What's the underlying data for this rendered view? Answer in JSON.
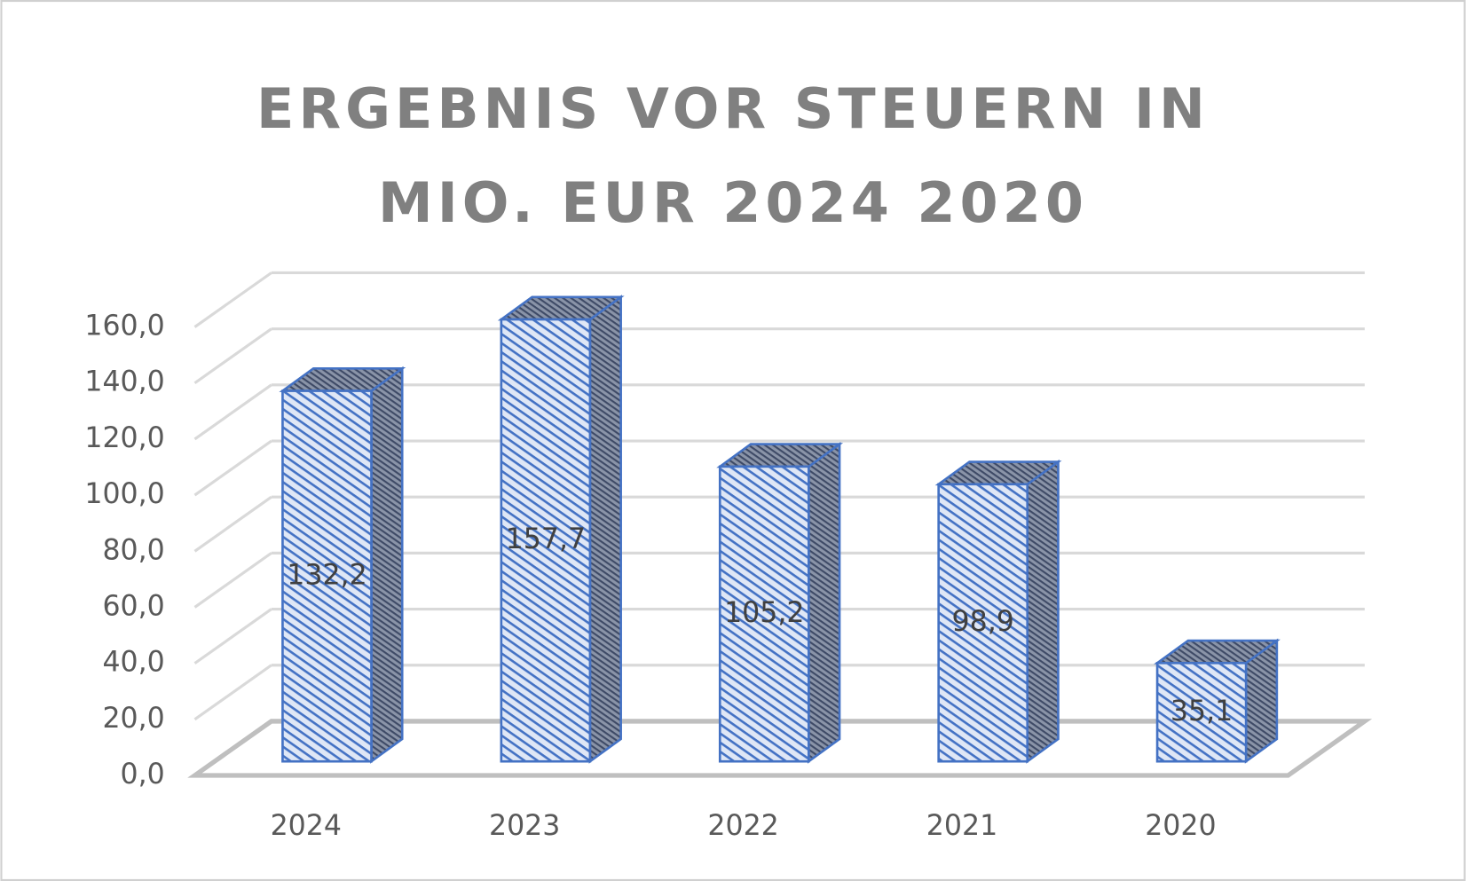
{
  "chart_data": {
    "type": "bar3d",
    "title": "ERGEBNIS VOR STEUERN IN MIO. EUR 2024 2020",
    "categories": [
      "2024",
      "2023",
      "2022",
      "2021",
      "2020"
    ],
    "values": [
      132.2,
      157.7,
      105.2,
      98.9,
      35.1
    ],
    "value_labels": [
      "132,2",
      "157,7",
      "105,2",
      "98,9",
      "35,1"
    ],
    "color": "#4472c4",
    "ylim": [
      0,
      160
    ],
    "yticks": [
      {
        "value": 0,
        "label": "0,0"
      },
      {
        "value": 20,
        "label": "20,0"
      },
      {
        "value": 40,
        "label": "40,0"
      },
      {
        "value": 60,
        "label": "60,0"
      },
      {
        "value": 80,
        "label": "80,0"
      },
      {
        "value": 100,
        "label": "100,0"
      },
      {
        "value": 120,
        "label": "120,0"
      },
      {
        "value": 140,
        "label": "140,0"
      },
      {
        "value": 160,
        "label": "160,0"
      }
    ],
    "grid": true
  }
}
